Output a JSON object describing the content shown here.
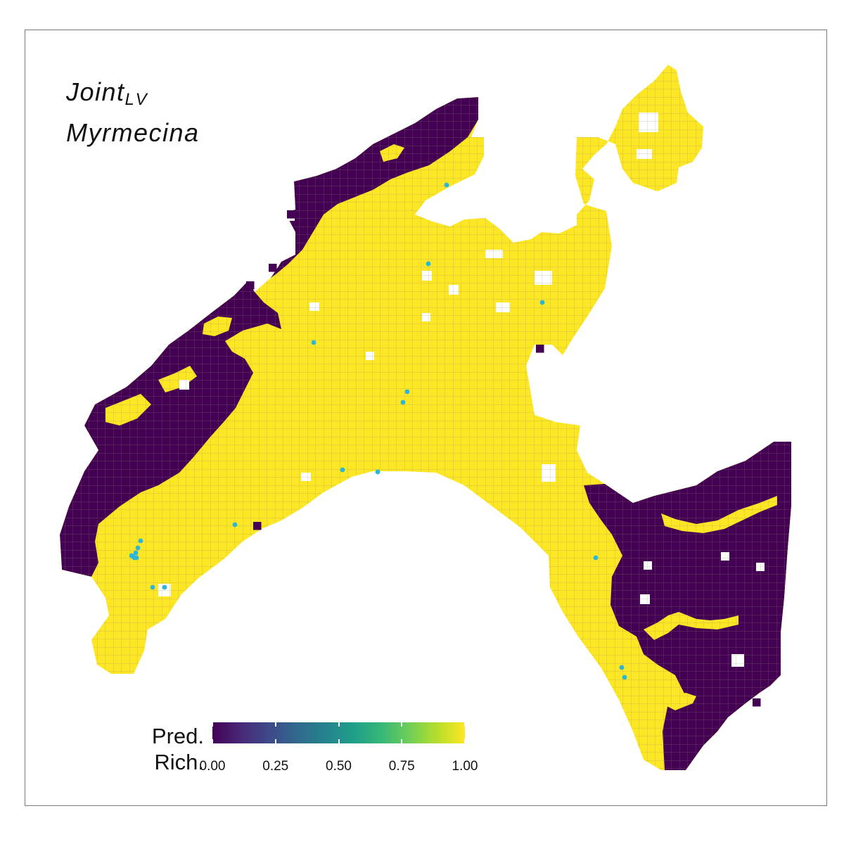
{
  "figure": {
    "title_main": "Joint",
    "title_sub": "LV",
    "subtitle": "Myrmecina"
  },
  "legend": {
    "title_line1": "Pred.",
    "title_line2": "Rich.",
    "ticks": [
      "0.00",
      "0.25",
      "0.50",
      "0.75",
      "1.00"
    ],
    "tick_values": [
      0.0,
      0.25,
      0.5,
      0.75,
      1.0
    ],
    "palette": "viridis",
    "low_color": "#440154",
    "high_color": "#fde725"
  },
  "colors": {
    "high_cell": "#fde725",
    "low_cell": "#440154",
    "grid_line": "#9e9e9e",
    "occurrence_point": "#29b6d9",
    "panel_border": "#7a7a7a"
  },
  "map_description": "Grid map of predicted richness (0 = dark purple, 1 = yellow) over Switzerland; light blue dots mark occurrence records",
  "occurrence_count": 21
}
